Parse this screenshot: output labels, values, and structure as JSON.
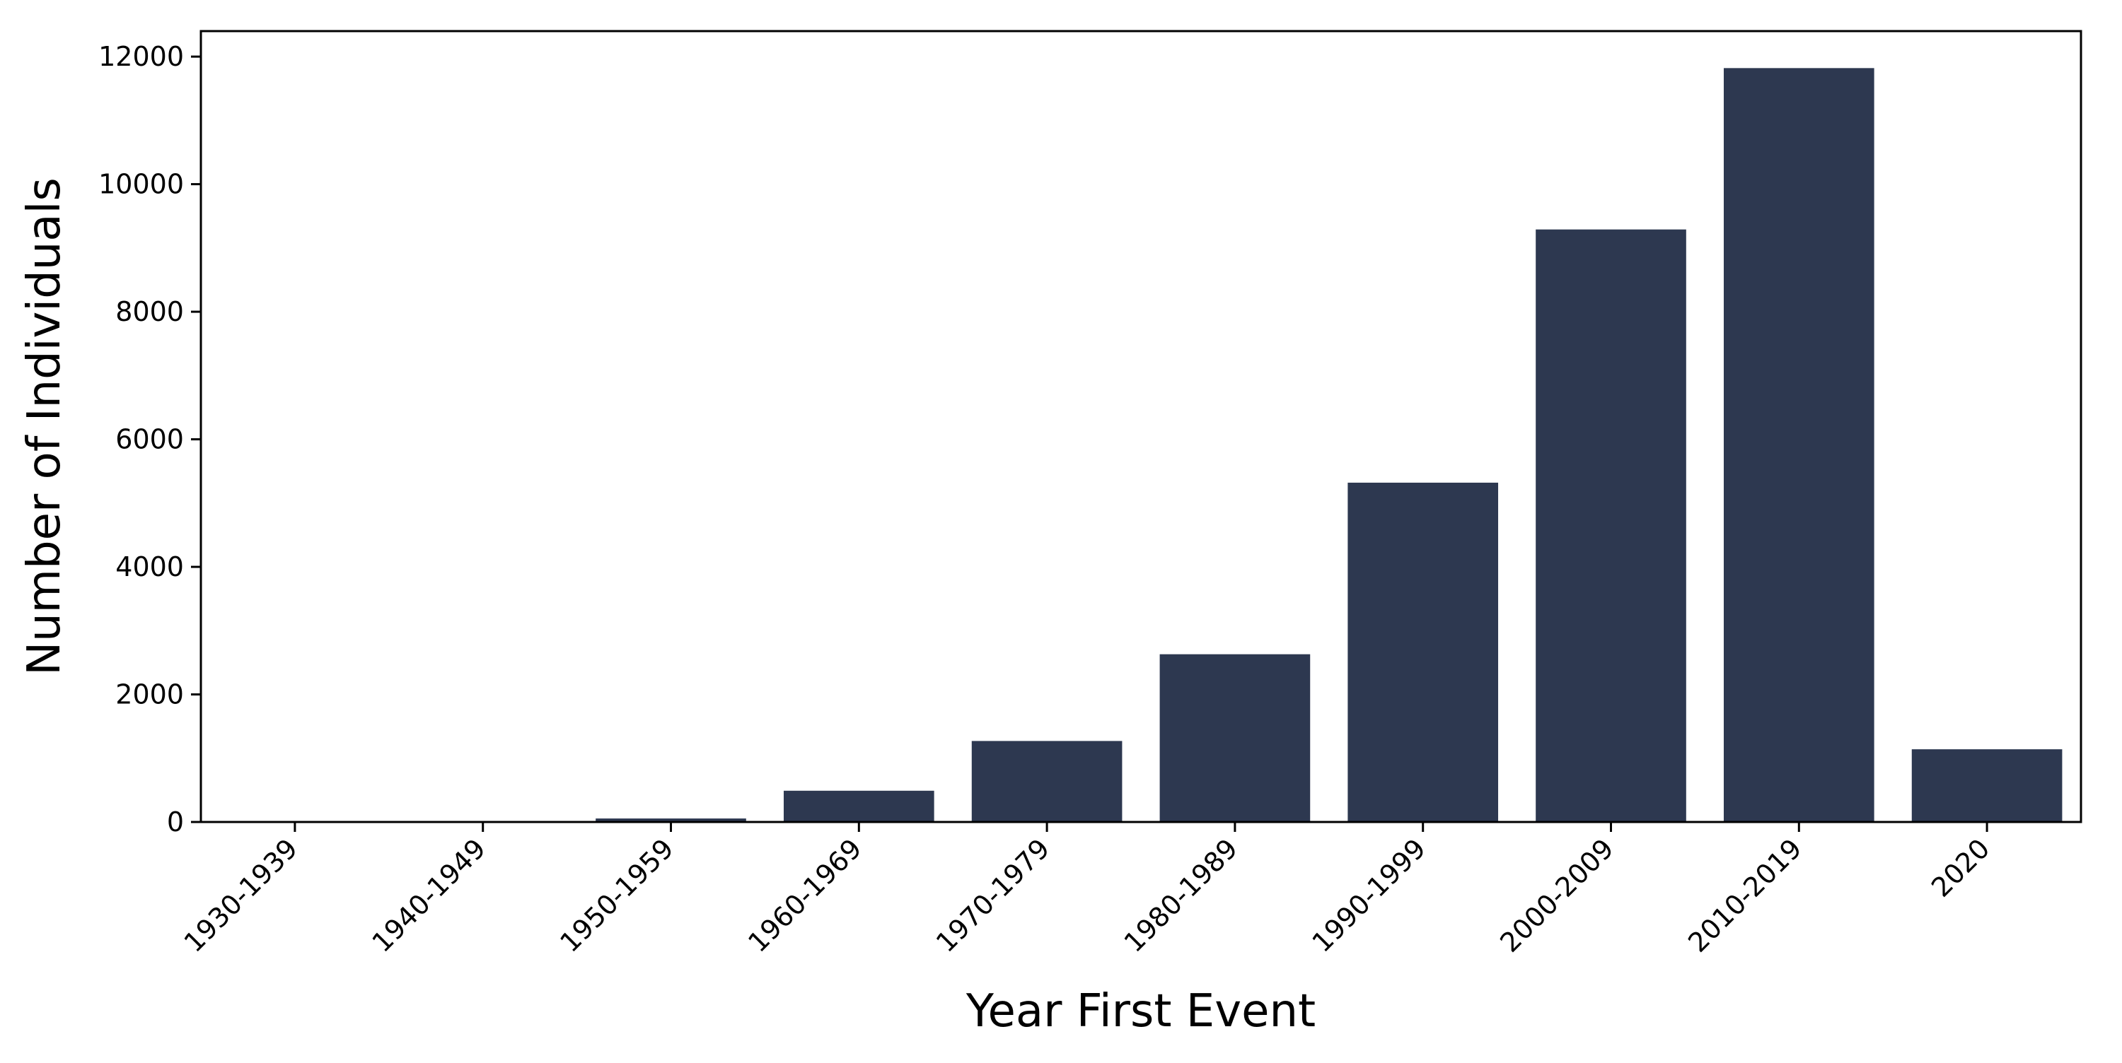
{
  "chart_data": {
    "type": "bar",
    "title": "",
    "xlabel": "Year First Event",
    "ylabel": "Number of Individuals",
    "categories": [
      "1930-1939",
      "1940-1949",
      "1950-1959",
      "1960-1969",
      "1970-1979",
      "1980-1989",
      "1990-1999",
      "2000-2009",
      "2010-2019",
      "2020"
    ],
    "values": [
      2,
      8,
      55,
      490,
      1270,
      2630,
      5320,
      9290,
      11820,
      1140
    ],
    "ylim": [
      0,
      12400
    ],
    "yticks": [
      0,
      2000,
      4000,
      6000,
      8000,
      10000,
      12000
    ],
    "ytick_labels": [
      "0",
      "2000",
      "4000",
      "6000",
      "8000",
      "10000",
      "12000"
    ],
    "grid": false,
    "legend": "none",
    "colors": {
      "bar": "#2d3850",
      "axis": "#000000",
      "background": "#ffffff"
    }
  }
}
